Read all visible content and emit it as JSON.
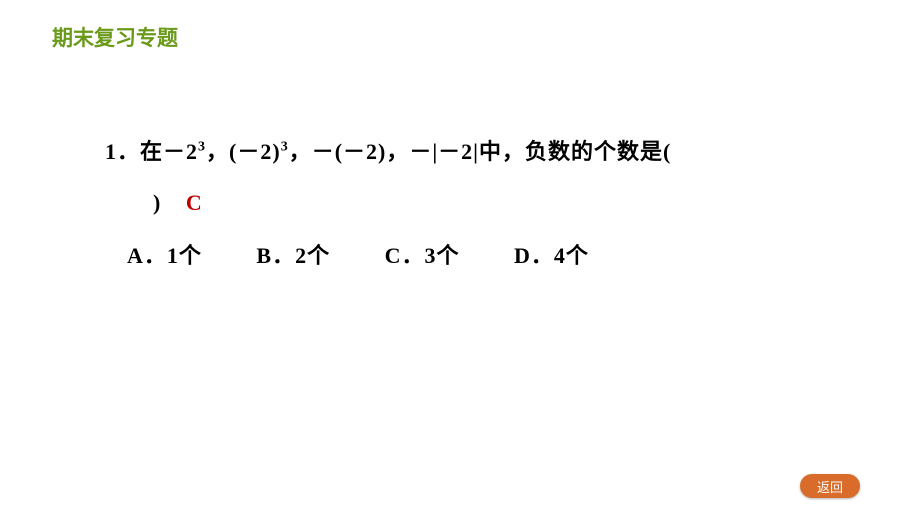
{
  "header": {
    "text": "期末复习专题",
    "color": "#6b9a1a"
  },
  "question": {
    "number": "1．",
    "stem_part1": "在－2",
    "exp1": "3",
    "stem_part2": "，(－2)",
    "exp2": "3",
    "stem_part3": "，－(－2)，－|－2|中，负数的个数是(",
    "closing_paren": ")",
    "answer": "C",
    "answer_color": "#c00000"
  },
  "options": {
    "a": "A．1个",
    "b": "B．2个",
    "c": "C．3个",
    "d": "D．4个"
  },
  "back_button": {
    "label": "返回",
    "bg_color": "#d96c2a",
    "text_color": "#ffffff"
  }
}
